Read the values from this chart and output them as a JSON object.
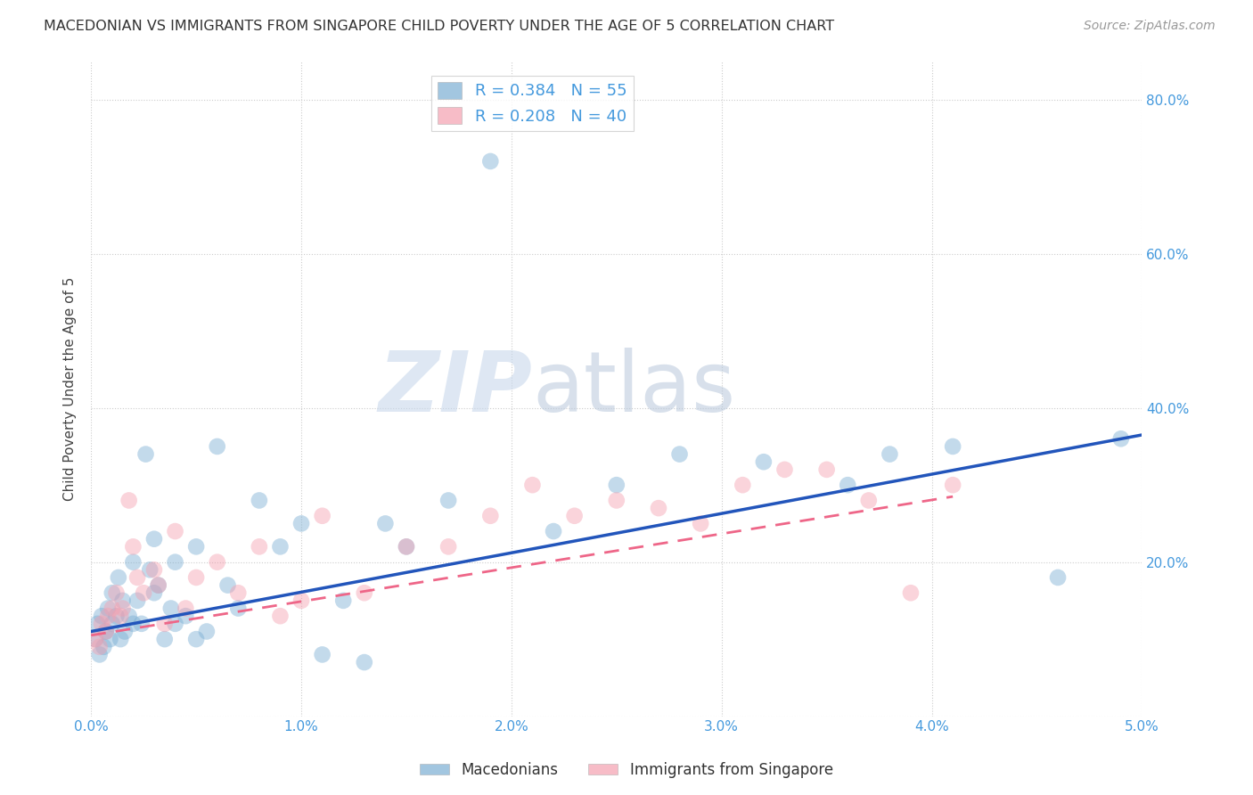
{
  "title": "MACEDONIAN VS IMMIGRANTS FROM SINGAPORE CHILD POVERTY UNDER THE AGE OF 5 CORRELATION CHART",
  "source": "Source: ZipAtlas.com",
  "ylabel": "Child Poverty Under the Age of 5",
  "xlim": [
    0.0,
    0.05
  ],
  "ylim": [
    0.0,
    0.85
  ],
  "xticks": [
    0.0,
    0.01,
    0.02,
    0.03,
    0.04,
    0.05
  ],
  "xtick_labels": [
    "0.0%",
    "1.0%",
    "2.0%",
    "3.0%",
    "4.0%",
    "5.0%"
  ],
  "yticks": [
    0.0,
    0.2,
    0.4,
    0.6,
    0.8
  ],
  "ytick_labels": [
    "",
    "20.0%",
    "40.0%",
    "60.0%",
    "80.0%"
  ],
  "macedonian_R": 0.384,
  "macedonian_N": 55,
  "singapore_R": 0.208,
  "singapore_N": 40,
  "blue_color": "#7BAFD4",
  "pink_color": "#F4A0B0",
  "blue_line_color": "#2255BB",
  "pink_line_color": "#EE6688",
  "macedonian_x": [
    0.0002,
    0.0003,
    0.0004,
    0.0005,
    0.0006,
    0.0007,
    0.0008,
    0.0009,
    0.001,
    0.001,
    0.0012,
    0.0013,
    0.0014,
    0.0015,
    0.0016,
    0.0018,
    0.002,
    0.002,
    0.0022,
    0.0024,
    0.0026,
    0.0028,
    0.003,
    0.003,
    0.0032,
    0.0035,
    0.0038,
    0.004,
    0.004,
    0.0045,
    0.005,
    0.005,
    0.0055,
    0.006,
    0.0065,
    0.007,
    0.008,
    0.009,
    0.01,
    0.011,
    0.012,
    0.013,
    0.014,
    0.015,
    0.017,
    0.019,
    0.022,
    0.025,
    0.028,
    0.032,
    0.036,
    0.038,
    0.041,
    0.046,
    0.049
  ],
  "macedonian_y": [
    0.1,
    0.12,
    0.08,
    0.13,
    0.09,
    0.11,
    0.14,
    0.1,
    0.16,
    0.12,
    0.13,
    0.18,
    0.1,
    0.15,
    0.11,
    0.13,
    0.2,
    0.12,
    0.15,
    0.12,
    0.34,
    0.19,
    0.23,
    0.16,
    0.17,
    0.1,
    0.14,
    0.2,
    0.12,
    0.13,
    0.22,
    0.1,
    0.11,
    0.35,
    0.17,
    0.14,
    0.28,
    0.22,
    0.25,
    0.08,
    0.15,
    0.07,
    0.25,
    0.22,
    0.28,
    0.72,
    0.24,
    0.3,
    0.34,
    0.33,
    0.3,
    0.34,
    0.35,
    0.18,
    0.36
  ],
  "singapore_x": [
    0.0002,
    0.0004,
    0.0005,
    0.0007,
    0.0008,
    0.001,
    0.0012,
    0.0014,
    0.0015,
    0.0018,
    0.002,
    0.0022,
    0.0025,
    0.003,
    0.0032,
    0.0035,
    0.004,
    0.0045,
    0.005,
    0.006,
    0.007,
    0.008,
    0.009,
    0.01,
    0.011,
    0.013,
    0.015,
    0.017,
    0.019,
    0.021,
    0.023,
    0.025,
    0.027,
    0.029,
    0.031,
    0.033,
    0.035,
    0.037,
    0.039,
    0.041
  ],
  "singapore_y": [
    0.1,
    0.09,
    0.12,
    0.11,
    0.13,
    0.14,
    0.16,
    0.13,
    0.14,
    0.28,
    0.22,
    0.18,
    0.16,
    0.19,
    0.17,
    0.12,
    0.24,
    0.14,
    0.18,
    0.2,
    0.16,
    0.22,
    0.13,
    0.15,
    0.26,
    0.16,
    0.22,
    0.22,
    0.26,
    0.3,
    0.26,
    0.28,
    0.27,
    0.25,
    0.3,
    0.32,
    0.32,
    0.28,
    0.16,
    0.3
  ],
  "background_color": "#ffffff",
  "grid_color": "#cccccc",
  "axis_color": "#4499DD",
  "watermark_zip": "ZIP",
  "watermark_atlas": "atlas",
  "legend_label_blue": "Macedonians",
  "legend_label_pink": "Immigrants from Singapore",
  "mac_line_x0": 0.0,
  "mac_line_y0": 0.11,
  "mac_line_x1": 0.05,
  "mac_line_y1": 0.365,
  "sing_line_x0": 0.0,
  "sing_line_y0": 0.105,
  "sing_line_x1": 0.041,
  "sing_line_y1": 0.285
}
